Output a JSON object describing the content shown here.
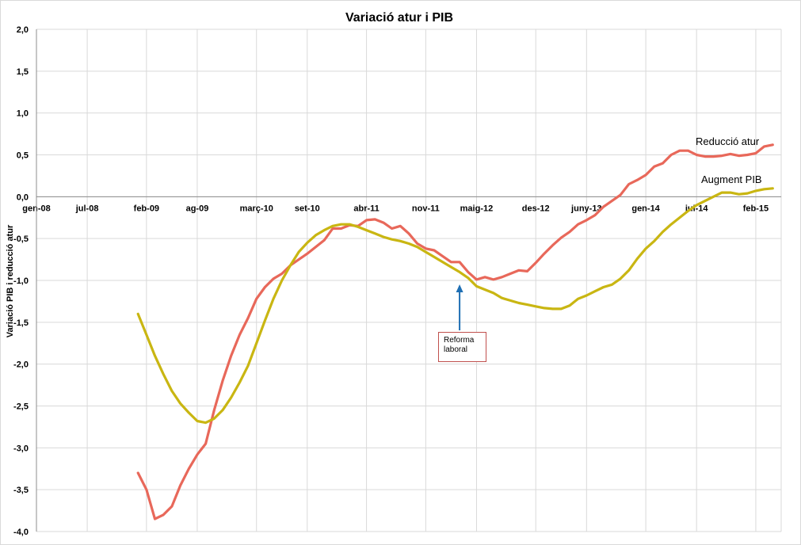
{
  "chart_data": {
    "type": "line",
    "title": "Variació atur i PIB",
    "ylabel": "Variació  PIB i reducció atur",
    "xlabel": "",
    "ylim": [
      -4.0,
      2.0
    ],
    "xlim": [
      "2008-01",
      "2015-05"
    ],
    "y_ticks": [
      "2,0",
      "1,5",
      "1,0",
      "0,5",
      "0,0",
      "-0,5",
      "-1,0",
      "-1,5",
      "-2,0",
      "-2,5",
      "-3,0",
      "-3,5",
      "-4,0"
    ],
    "x_ticks": [
      {
        "label": "gen-08",
        "date": "2008-01"
      },
      {
        "label": "jul-08",
        "date": "2008-07"
      },
      {
        "label": "feb-09",
        "date": "2009-02"
      },
      {
        "label": "ag-09",
        "date": "2009-08"
      },
      {
        "label": "març-10",
        "date": "2010-03"
      },
      {
        "label": "set-10",
        "date": "2010-09"
      },
      {
        "label": "abr-11",
        "date": "2011-04"
      },
      {
        "label": "nov-11",
        "date": "2011-11"
      },
      {
        "label": "maig-12",
        "date": "2012-05"
      },
      {
        "label": "des-12",
        "date": "2012-12"
      },
      {
        "label": "juny-13",
        "date": "2013-06"
      },
      {
        "label": "gen-14",
        "date": "2014-01"
      },
      {
        "label": "jul-14",
        "date": "2014-07"
      },
      {
        "label": "feb-15",
        "date": "2015-02"
      }
    ],
    "grid": true,
    "series": [
      {
        "name": "Reducció atur",
        "color": "#e8685a",
        "points": [
          [
            "2009-01",
            -3.3
          ],
          [
            "2009-02",
            -3.5
          ],
          [
            "2009-03",
            -3.85
          ],
          [
            "2009-04",
            -3.8
          ],
          [
            "2009-05",
            -3.7
          ],
          [
            "2009-06",
            -3.45
          ],
          [
            "2009-07",
            -3.25
          ],
          [
            "2009-08",
            -3.08
          ],
          [
            "2009-09",
            -2.95
          ],
          [
            "2009-10",
            -2.55
          ],
          [
            "2009-11",
            -2.2
          ],
          [
            "2009-12",
            -1.9
          ],
          [
            "2010-01",
            -1.65
          ],
          [
            "2010-02",
            -1.45
          ],
          [
            "2010-03",
            -1.22
          ],
          [
            "2010-04",
            -1.08
          ],
          [
            "2010-05",
            -0.98
          ],
          [
            "2010-06",
            -0.92
          ],
          [
            "2010-07",
            -0.82
          ],
          [
            "2010-08",
            -0.75
          ],
          [
            "2010-09",
            -0.68
          ],
          [
            "2010-10",
            -0.6
          ],
          [
            "2010-11",
            -0.52
          ],
          [
            "2010-12",
            -0.38
          ],
          [
            "2011-01",
            -0.38
          ],
          [
            "2011-02",
            -0.34
          ],
          [
            "2011-03",
            -0.35
          ],
          [
            "2011-04",
            -0.28
          ],
          [
            "2011-05",
            -0.27
          ],
          [
            "2011-06",
            -0.31
          ],
          [
            "2011-07",
            -0.38
          ],
          [
            "2011-08",
            -0.35
          ],
          [
            "2011-09",
            -0.44
          ],
          [
            "2011-10",
            -0.56
          ],
          [
            "2011-11",
            -0.62
          ],
          [
            "2011-12",
            -0.64
          ],
          [
            "2012-01",
            -0.71
          ],
          [
            "2012-02",
            -0.78
          ],
          [
            "2012-03",
            -0.78
          ],
          [
            "2012-04",
            -0.9
          ],
          [
            "2012-05",
            -0.99
          ],
          [
            "2012-06",
            -0.96
          ],
          [
            "2012-07",
            -0.99
          ],
          [
            "2012-08",
            -0.96
          ],
          [
            "2012-09",
            -0.92
          ],
          [
            "2012-10",
            -0.88
          ],
          [
            "2012-11",
            -0.89
          ],
          [
            "2012-12",
            -0.79
          ],
          [
            "2013-01",
            -0.68
          ],
          [
            "2013-02",
            -0.58
          ],
          [
            "2013-03",
            -0.49
          ],
          [
            "2013-04",
            -0.42
          ],
          [
            "2013-05",
            -0.33
          ],
          [
            "2013-06",
            -0.28
          ],
          [
            "2013-07",
            -0.22
          ],
          [
            "2013-08",
            -0.12
          ],
          [
            "2013-09",
            -0.05
          ],
          [
            "2013-10",
            0.02
          ],
          [
            "2013-11",
            0.15
          ],
          [
            "2013-12",
            0.2
          ],
          [
            "2014-01",
            0.26
          ],
          [
            "2014-02",
            0.36
          ],
          [
            "2014-03",
            0.4
          ],
          [
            "2014-04",
            0.5
          ],
          [
            "2014-05",
            0.55
          ],
          [
            "2014-06",
            0.55
          ],
          [
            "2014-07",
            0.5
          ],
          [
            "2014-08",
            0.48
          ],
          [
            "2014-09",
            0.48
          ],
          [
            "2014-10",
            0.49
          ],
          [
            "2014-11",
            0.51
          ],
          [
            "2014-12",
            0.49
          ],
          [
            "2015-01",
            0.5
          ],
          [
            "2015-02",
            0.52
          ],
          [
            "2015-03",
            0.6
          ],
          [
            "2015-04",
            0.62
          ]
        ]
      },
      {
        "name": "Augment PIB",
        "color": "#c9b612",
        "points": [
          [
            "2009-01",
            -1.4
          ],
          [
            "2009-02",
            -1.65
          ],
          [
            "2009-03",
            -1.9
          ],
          [
            "2009-04",
            -2.12
          ],
          [
            "2009-05",
            -2.32
          ],
          [
            "2009-06",
            -2.47
          ],
          [
            "2009-07",
            -2.58
          ],
          [
            "2009-08",
            -2.68
          ],
          [
            "2009-09",
            -2.7
          ],
          [
            "2009-10",
            -2.65
          ],
          [
            "2009-11",
            -2.55
          ],
          [
            "2009-12",
            -2.4
          ],
          [
            "2010-01",
            -2.22
          ],
          [
            "2010-02",
            -2.02
          ],
          [
            "2010-03",
            -1.75
          ],
          [
            "2010-04",
            -1.48
          ],
          [
            "2010-05",
            -1.22
          ],
          [
            "2010-06",
            -1.0
          ],
          [
            "2010-07",
            -0.82
          ],
          [
            "2010-08",
            -0.66
          ],
          [
            "2010-09",
            -0.55
          ],
          [
            "2010-10",
            -0.46
          ],
          [
            "2010-11",
            -0.4
          ],
          [
            "2010-12",
            -0.35
          ],
          [
            "2011-01",
            -0.33
          ],
          [
            "2011-02",
            -0.33
          ],
          [
            "2011-03",
            -0.36
          ],
          [
            "2011-04",
            -0.4
          ],
          [
            "2011-05",
            -0.44
          ],
          [
            "2011-06",
            -0.48
          ],
          [
            "2011-07",
            -0.51
          ],
          [
            "2011-08",
            -0.53
          ],
          [
            "2011-09",
            -0.56
          ],
          [
            "2011-10",
            -0.6
          ],
          [
            "2011-11",
            -0.66
          ],
          [
            "2011-12",
            -0.72
          ],
          [
            "2012-01",
            -0.78
          ],
          [
            "2012-02",
            -0.84
          ],
          [
            "2012-03",
            -0.9
          ],
          [
            "2012-04",
            -0.97
          ],
          [
            "2012-05",
            -1.07
          ],
          [
            "2012-06",
            -1.11
          ],
          [
            "2012-07",
            -1.15
          ],
          [
            "2012-08",
            -1.21
          ],
          [
            "2012-09",
            -1.24
          ],
          [
            "2012-10",
            -1.27
          ],
          [
            "2012-11",
            -1.29
          ],
          [
            "2012-12",
            -1.31
          ],
          [
            "2013-01",
            -1.33
          ],
          [
            "2013-02",
            -1.34
          ],
          [
            "2013-03",
            -1.34
          ],
          [
            "2013-04",
            -1.3
          ],
          [
            "2013-05",
            -1.22
          ],
          [
            "2013-06",
            -1.18
          ],
          [
            "2013-07",
            -1.13
          ],
          [
            "2013-08",
            -1.08
          ],
          [
            "2013-09",
            -1.05
          ],
          [
            "2013-10",
            -0.98
          ],
          [
            "2013-11",
            -0.88
          ],
          [
            "2013-12",
            -0.74
          ],
          [
            "2014-01",
            -0.62
          ],
          [
            "2014-02",
            -0.53
          ],
          [
            "2014-03",
            -0.42
          ],
          [
            "2014-04",
            -0.33
          ],
          [
            "2014-05",
            -0.25
          ],
          [
            "2014-06",
            -0.17
          ],
          [
            "2014-07",
            -0.1
          ],
          [
            "2014-08",
            -0.05
          ],
          [
            "2014-09",
            0.0
          ],
          [
            "2014-10",
            0.05
          ],
          [
            "2014-11",
            0.05
          ],
          [
            "2014-12",
            0.03
          ],
          [
            "2015-01",
            0.04
          ],
          [
            "2015-02",
            0.07
          ],
          [
            "2015-03",
            0.09
          ],
          [
            "2015-04",
            0.1
          ]
        ]
      }
    ],
    "annotations": [
      {
        "text_line1": "Reforma",
        "text_line2": "laboral",
        "arrow_date": "2012-03",
        "arrow_value": -1.0,
        "color": "#1f6fb4"
      }
    ]
  }
}
